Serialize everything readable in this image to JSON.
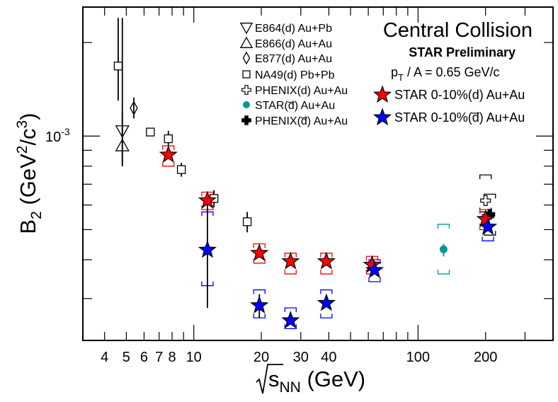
{
  "chart_data": {
    "type": "scatter",
    "title": "Central Collision",
    "subtitle": "STAR Preliminary",
    "annotation": {
      "p_letter": "p",
      "p_sub": "T",
      "rest": " / A = 0.65 GeV/c"
    },
    "ylabel": {
      "main": "B",
      "sub": "2",
      "rest1": " (GeV",
      "sup": "2",
      "rest2": "/c",
      "sup2": "3",
      "rest3": ")"
    },
    "xlabel": {
      "s": "s",
      "sub": "NN",
      "rest": " (GeV)"
    },
    "x_scale": "log",
    "y_scale": "log",
    "xlim": [
      3.2,
      400
    ],
    "ylim": [
      0.00022,
      0.0026
    ],
    "x_ticks": [
      {
        "v": 4,
        "label": "4"
      },
      {
        "v": 5,
        "label": "5"
      },
      {
        "v": 6,
        "label": "6"
      },
      {
        "v": 7,
        "label": "7"
      },
      {
        "v": 8,
        "label": "8"
      },
      {
        "v": 10,
        "label": "10"
      },
      {
        "v": 20,
        "label": "20"
      },
      {
        "v": 30,
        "label": "30"
      },
      {
        "v": 40,
        "label": "40"
      },
      {
        "v": 100,
        "label": "100"
      },
      {
        "v": 200,
        "label": "200"
      }
    ],
    "y_ticks": [
      {
        "v": 0.001,
        "base": "10",
        "exp": "-3"
      }
    ],
    "legend": [
      {
        "marker": "tri-down",
        "label": "E864(d) Au+Pb"
      },
      {
        "marker": "tri-up",
        "label": "E866(d) Au+Au"
      },
      {
        "marker": "diamond",
        "label": "E877(d) Au+Au"
      },
      {
        "marker": "square",
        "label": "NA49(d) Pb+Pb"
      },
      {
        "marker": "cross-open",
        "label": "PHENIX(d) Au+Au"
      },
      {
        "marker": "circle-teal",
        "label": "STAR(d̅) Au+Au"
      },
      {
        "marker": "cross-filled",
        "label": "PHENIX(d̅) Au+Au"
      },
      {
        "marker": "star-red",
        "label": "STAR 0-10%(d) Au+Au"
      },
      {
        "marker": "star-blue",
        "label": "STAR 0-10%(d̅) Au+Au"
      }
    ],
    "series": [
      {
        "name": "E864(d) Au+Pb",
        "marker": "tri-down",
        "points": [
          {
            "x": 4.8,
            "y": 0.00104,
            "err": [
              0.0008,
              0.0024
            ]
          }
        ]
      },
      {
        "name": "E866(d) Au+Au",
        "marker": "tri-up",
        "points": [
          {
            "x": 4.8,
            "y": 0.00093,
            "err": [
              0.0008,
              0.0012
            ]
          }
        ]
      },
      {
        "name": "E877(d) Au+Au",
        "marker": "diamond",
        "points": [
          {
            "x": 5.4,
            "y": 0.00123,
            "err": [
              0.00114,
              0.00133
            ]
          }
        ]
      },
      {
        "name": "NA49(d) Pb+Pb",
        "marker": "square",
        "points": [
          {
            "x": 4.6,
            "y": 0.00168,
            "err": [
              0.0013,
              0.0024
            ]
          },
          {
            "x": 6.4,
            "y": 0.00103
          },
          {
            "x": 7.7,
            "y": 0.00098,
            "err": [
              0.00093,
              0.00104
            ]
          },
          {
            "x": 8.8,
            "y": 0.00078,
            "err": [
              0.00074,
              0.00082
            ]
          },
          {
            "x": 12.3,
            "y": 0.00063,
            "err": [
              0.00059,
              0.00067
            ]
          },
          {
            "x": 17.3,
            "y": 0.00053,
            "err": [
              0.00049,
              0.00057
            ]
          }
        ]
      },
      {
        "name": "PHENIX(d) Au+Au",
        "marker": "cross-open",
        "points": [
          {
            "x": 200,
            "y": 0.00062,
            "sys": [
              0.00057,
              0.00075
            ]
          }
        ]
      },
      {
        "name": "STAR(d̅) Au+Au",
        "marker": "circle-teal",
        "points": [
          {
            "x": 130,
            "y": 0.000432,
            "err": [
              0.00041,
              0.00045
            ],
            "sys": [
              0.00036,
              0.00052
            ]
          }
        ]
      },
      {
        "name": "PHENIX(d̅) Au+Au",
        "marker": "cross-filled",
        "points": [
          {
            "x": 209,
            "y": 0.00056,
            "sys": [
              0.00048,
              0.00065
            ]
          }
        ]
      },
      {
        "name": "STAR 0-10%(d) Au+Au",
        "marker": "star-red",
        "points": [
          {
            "x": 7.7,
            "y": 0.00087,
            "sys": [
              0.0008,
              0.00093
            ]
          },
          {
            "x": 11.5,
            "y": 0.00062,
            "sys": [
              0.00058,
              0.00066
            ]
          },
          {
            "x": 19.6,
            "y": 0.00042,
            "sys": [
              0.00039,
              0.00045
            ]
          },
          {
            "x": 27,
            "y": 0.000395,
            "sys": [
              0.00036,
              0.00042
            ]
          },
          {
            "x": 39,
            "y": 0.000395,
            "sys": [
              0.00036,
              0.00042
            ]
          },
          {
            "x": 62.4,
            "y": 0.000385,
            "sys": [
              0.00036,
              0.00041
            ]
          },
          {
            "x": 200,
            "y": 0.00054,
            "sys": [
              0.0005,
              0.00058
            ]
          }
        ]
      },
      {
        "name": "STAR 0-10%(d̅) Au+Au",
        "marker": "star-blue",
        "points": [
          {
            "x": 11.5,
            "y": 0.00043,
            "err": [
              0.00028,
              0.0006
            ],
            "sys": [
              0.00033,
              0.00057
            ]
          },
          {
            "x": 19.6,
            "y": 0.000285,
            "err": [
              0.00026,
              0.00031
            ],
            "sys": [
              0.00026,
              0.00032
            ]
          },
          {
            "x": 27,
            "y": 0.000255,
            "sys": [
              0.00024,
              0.00028
            ]
          },
          {
            "x": 39,
            "y": 0.00029,
            "sys": [
              0.00026,
              0.00032
            ]
          },
          {
            "x": 64,
            "y": 0.00037,
            "sys": [
              0.00034,
              0.0004
            ]
          },
          {
            "x": 205,
            "y": 0.00051,
            "sys": [
              0.00046,
              0.00056
            ]
          }
        ]
      }
    ]
  }
}
